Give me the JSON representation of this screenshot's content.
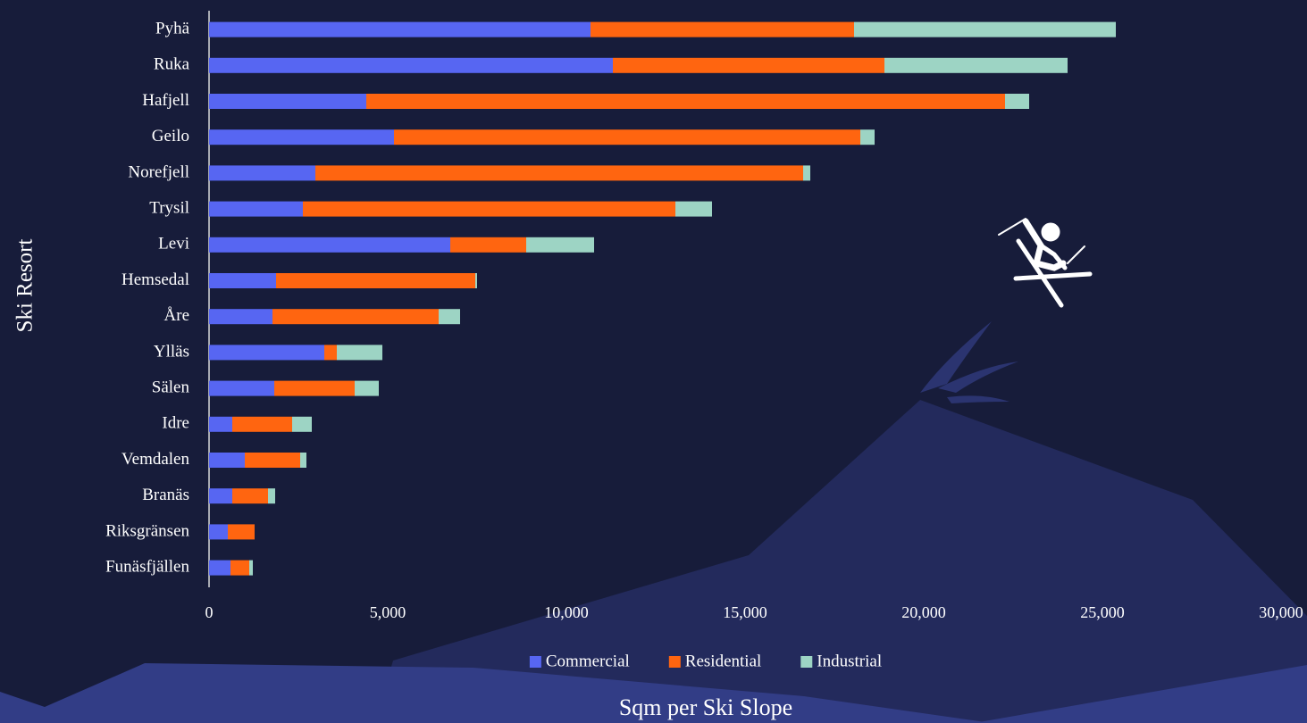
{
  "chart_data": {
    "type": "stacked_bar_horizontal",
    "x_label": "Sqm per Ski Slope",
    "y_label": "Ski Resort",
    "categories": [
      "Pyhä",
      "Ruka",
      "Hafjell",
      "Geilo",
      "Norefjell",
      "Trysil",
      "Levi",
      "Hemsedal",
      "Åre",
      "Ylläs",
      "Sälen",
      "Idre",
      "Vemdalen",
      "Branäs",
      "Riksgränsen",
      "Funäsfjällen"
    ],
    "series": [
      {
        "name": "Commercial",
        "color": "#5766f2",
        "values": [
          10675,
          11300,
          4400,
          5175,
          2975,
          2625,
          6750,
          1875,
          1775,
          3225,
          1825,
          650,
          1000,
          650,
          525,
          600
        ]
      },
      {
        "name": "Residential",
        "color": "#ff6510",
        "values": [
          7375,
          7600,
          17875,
          13050,
          13650,
          10425,
          2125,
          5575,
          4650,
          350,
          2250,
          1675,
          1550,
          1000,
          750,
          525
        ]
      },
      {
        "name": "Industrial",
        "color": "#9dd4c4",
        "values": [
          7325,
          5125,
          675,
          400,
          200,
          1025,
          1900,
          50,
          600,
          1275,
          675,
          550,
          175,
          200,
          0,
          100
        ]
      }
    ],
    "xlim": [
      0,
      30000
    ],
    "xticks": [
      0,
      {
        "value": 5000,
        "label": "5,000"
      },
      {
        "value": 10000,
        "label": "10,000"
      },
      {
        "value": 15000,
        "label": "15,000"
      },
      {
        "value": 20000,
        "label": "20,000"
      },
      {
        "value": 25000,
        "label": "25,000"
      },
      {
        "value": 30000,
        "label": "30,000"
      }
    ],
    "legend": "bottom"
  }
}
